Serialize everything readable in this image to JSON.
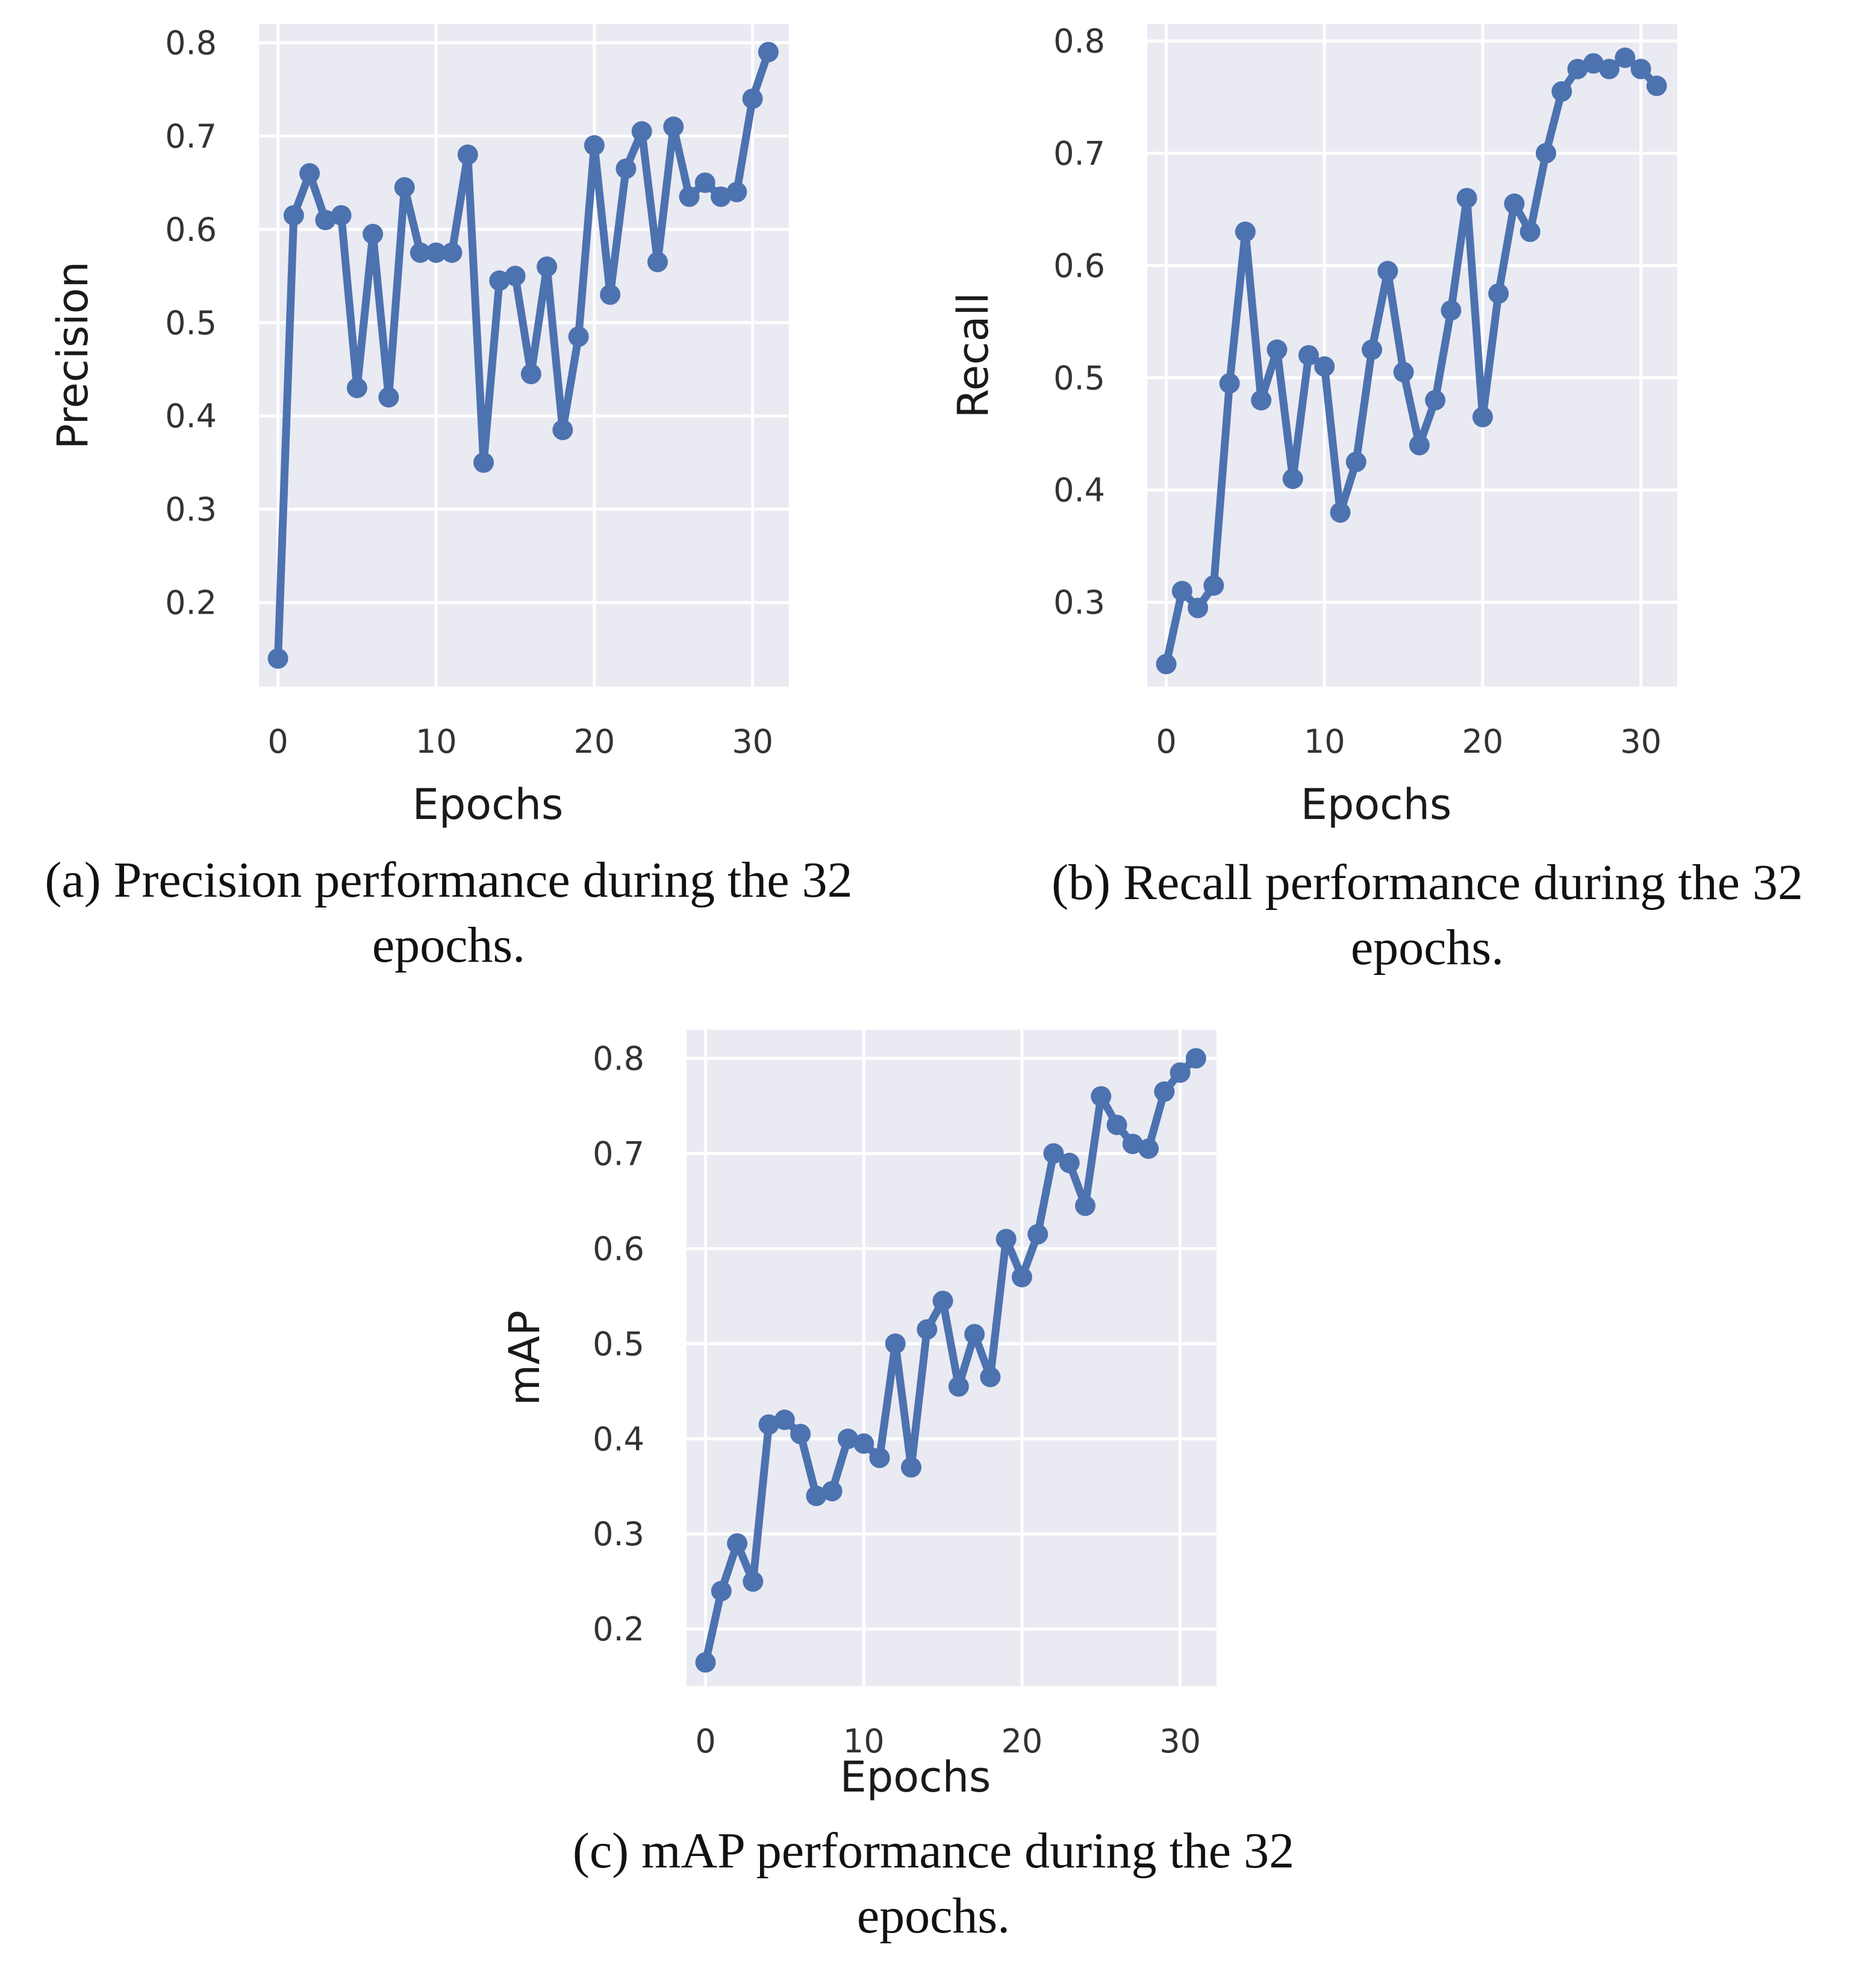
{
  "chart_data": [
    {
      "type": "line",
      "xlabel": "Epochs",
      "ylabel": "Precision",
      "xlim": [
        -1.2,
        32.3
      ],
      "ylim": [
        0.11,
        0.82
      ],
      "xticks": [
        0,
        10,
        20,
        30
      ],
      "yticks": [
        0.2,
        0.3,
        0.4,
        0.5,
        0.6,
        0.7,
        0.8
      ],
      "grid": true,
      "x": [
        0,
        1,
        2,
        3,
        4,
        5,
        6,
        7,
        8,
        9,
        10,
        11,
        12,
        13,
        14,
        15,
        16,
        17,
        18,
        19,
        20,
        21,
        22,
        23,
        24,
        25,
        26,
        27,
        28,
        29,
        30,
        31
      ],
      "series": [
        {
          "values": [
            0.14,
            0.615,
            0.66,
            0.61,
            0.615,
            0.43,
            0.595,
            0.42,
            0.645,
            0.575,
            0.575,
            0.575,
            0.68,
            0.35,
            0.545,
            0.55,
            0.445,
            0.56,
            0.385,
            0.485,
            0.69,
            0.53,
            0.665,
            0.705,
            0.565,
            0.71,
            0.635,
            0.65,
            0.635,
            0.64,
            0.74,
            0.79
          ]
        }
      ],
      "caption": "(a) Precision performance during the 32 epochs."
    },
    {
      "type": "line",
      "xlabel": "Epochs",
      "ylabel": "Recall",
      "xlim": [
        -1.2,
        32.3
      ],
      "ylim": [
        0.225,
        0.815
      ],
      "xticks": [
        0,
        10,
        20,
        30
      ],
      "yticks": [
        0.3,
        0.4,
        0.5,
        0.6,
        0.7,
        0.8
      ],
      "grid": true,
      "x": [
        0,
        1,
        2,
        3,
        4,
        5,
        6,
        7,
        8,
        9,
        10,
        11,
        12,
        13,
        14,
        15,
        16,
        17,
        18,
        19,
        20,
        21,
        22,
        23,
        24,
        25,
        26,
        27,
        28,
        29,
        30,
        31
      ],
      "series": [
        {
          "values": [
            0.245,
            0.31,
            0.295,
            0.315,
            0.495,
            0.63,
            0.48,
            0.525,
            0.41,
            0.52,
            0.51,
            0.38,
            0.425,
            0.525,
            0.595,
            0.505,
            0.44,
            0.48,
            0.56,
            0.66,
            0.465,
            0.575,
            0.655,
            0.63,
            0.7,
            0.755,
            0.775,
            0.78,
            0.775,
            0.785,
            0.775,
            0.76
          ]
        }
      ],
      "caption": "(b) Recall performance during the 32 epochs."
    },
    {
      "type": "line",
      "xlabel": "Epochs",
      "ylabel": "mAP",
      "xlim": [
        -1.2,
        32.3
      ],
      "ylim": [
        0.14,
        0.83
      ],
      "xticks": [
        0,
        10,
        20,
        30
      ],
      "yticks": [
        0.2,
        0.3,
        0.4,
        0.5,
        0.6,
        0.7,
        0.8
      ],
      "grid": true,
      "x": [
        0,
        1,
        2,
        3,
        4,
        5,
        6,
        7,
        8,
        9,
        10,
        11,
        12,
        13,
        14,
        15,
        16,
        17,
        18,
        19,
        20,
        21,
        22,
        23,
        24,
        25,
        26,
        27,
        28,
        29,
        30,
        31
      ],
      "series": [
        {
          "values": [
            0.165,
            0.24,
            0.29,
            0.25,
            0.415,
            0.42,
            0.405,
            0.34,
            0.345,
            0.4,
            0.395,
            0.38,
            0.5,
            0.37,
            0.515,
            0.545,
            0.455,
            0.51,
            0.465,
            0.61,
            0.57,
            0.615,
            0.7,
            0.69,
            0.645,
            0.76,
            0.73,
            0.71,
            0.705,
            0.765,
            0.785,
            0.8
          ]
        }
      ],
      "caption": "(c) mAP performance during the 32 epochs."
    }
  ]
}
